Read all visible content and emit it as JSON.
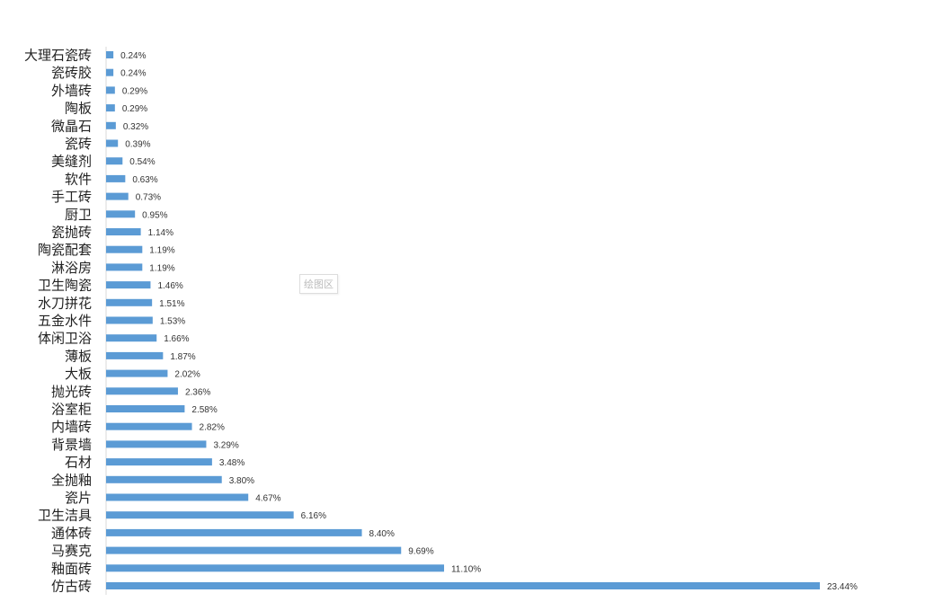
{
  "chart_data": {
    "type": "bar",
    "orientation": "horizontal",
    "title": "",
    "xlabel": "",
    "ylabel": "",
    "bar_color": "#5B9BD5",
    "value_format": "percent",
    "xlim": [
      0,
      23.44
    ],
    "categories": [
      "大理石瓷砖",
      "瓷砖胶",
      "外墙砖",
      "陶板",
      "微晶石",
      "瓷砖",
      "美缝剂",
      "软件",
      "手工砖",
      "厨卫",
      "瓷抛砖",
      "陶瓷配套",
      "淋浴房",
      "卫生陶瓷",
      "水刀拼花",
      "五金水件",
      "体闲卫浴",
      "薄板",
      "大板",
      "抛光砖",
      "浴室柜",
      "内墙砖",
      "背景墙",
      "石材",
      "全抛釉",
      "瓷片",
      "卫生洁具",
      "通体砖",
      "马赛克",
      "釉面砖",
      "仿古砖"
    ],
    "values": [
      0.24,
      0.24,
      0.29,
      0.29,
      0.32,
      0.39,
      0.54,
      0.63,
      0.73,
      0.95,
      1.14,
      1.19,
      1.19,
      1.46,
      1.51,
      1.53,
      1.66,
      1.87,
      2.02,
      2.36,
      2.58,
      2.82,
      3.29,
      3.48,
      3.8,
      4.67,
      6.16,
      8.4,
      9.69,
      11.1,
      23.44
    ],
    "labels": [
      "0.24%",
      "0.24%",
      "0.29%",
      "0.29%",
      "0.32%",
      "0.39%",
      "0.54%",
      "0.63%",
      "0.73%",
      "0.95%",
      "1.14%",
      "1.19%",
      "1.19%",
      "1.46%",
      "1.51%",
      "1.53%",
      "1.66%",
      "1.87%",
      "2.02%",
      "2.36%",
      "2.58%",
      "2.82%",
      "3.29%",
      "3.48%",
      "3.80%",
      "4.67%",
      "6.16%",
      "8.40%",
      "9.69%",
      "11.10%",
      "23.44%"
    ]
  },
  "tooltip": "绘图区"
}
